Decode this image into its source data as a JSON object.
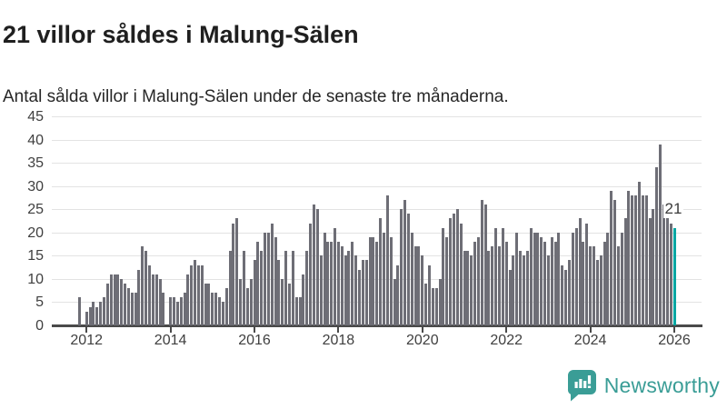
{
  "header": {
    "title": "21 villor såldes i Malung-Sälen",
    "subtitle": "Antal sålda villor i Malung-Sälen under de senaste tre månaderna."
  },
  "chart_data": {
    "type": "bar",
    "title": "21 villor såldes i Malung-Sälen",
    "subtitle": "Antal sålda villor i Malung-Sälen under de senaste tre månaderna.",
    "ylabel": "",
    "xlabel": "",
    "ylim": [
      0,
      45
    ],
    "y_ticks": [
      0,
      5,
      10,
      15,
      20,
      25,
      30,
      35,
      40,
      45
    ],
    "x_tick_years": [
      2012,
      2014,
      2016,
      2018,
      2020,
      2022,
      2024,
      2026
    ],
    "grid": true,
    "legend": "none",
    "bar_color": "#6e6e76",
    "highlight_color": "#00a6a2",
    "x_start": "2011-11",
    "x_end": "2026-01",
    "x_step": "month",
    "values": [
      6,
      0,
      3,
      4,
      5,
      4,
      5,
      6,
      9,
      11,
      11,
      11,
      10,
      9,
      8,
      7,
      7,
      12,
      17,
      16,
      13,
      11,
      11,
      10,
      7,
      0,
      6,
      6,
      5,
      6,
      7,
      11,
      13,
      14,
      13,
      13,
      9,
      9,
      7,
      7,
      6,
      5,
      8,
      16,
      22,
      23,
      10,
      16,
      8,
      10,
      14,
      18,
      16,
      20,
      20,
      22,
      19,
      14,
      10,
      16,
      9,
      16,
      6,
      6,
      11,
      16,
      22,
      26,
      25,
      15,
      20,
      18,
      18,
      21,
      18,
      17,
      15,
      16,
      18,
      15,
      12,
      14,
      14,
      19,
      19,
      18,
      23,
      20,
      28,
      19,
      10,
      13,
      25,
      27,
      24,
      20,
      17,
      17,
      15,
      9,
      13,
      8,
      8,
      10,
      21,
      19,
      23,
      24,
      25,
      22,
      16,
      16,
      15,
      18,
      19,
      27,
      26,
      16,
      17,
      21,
      17,
      21,
      18,
      12,
      15,
      20,
      16,
      15,
      16,
      21,
      20,
      20,
      19,
      18,
      15,
      19,
      18,
      20,
      13,
      12,
      14,
      20,
      21,
      23,
      18,
      22,
      17,
      17,
      14,
      15,
      18,
      20,
      29,
      27,
      17,
      20,
      23,
      29,
      28,
      28,
      31,
      28,
      28,
      23,
      25,
      34,
      39,
      26,
      25,
      22,
      21
    ],
    "highlight": {
      "index": 170,
      "value": 21,
      "annotation": "21"
    }
  },
  "branding": {
    "name": "Newsworthy",
    "color": "#3a9d96",
    "icon": "newsworthy-speech-bubble-chart-icon"
  },
  "colors": {
    "background": "#ffffff",
    "title": "#1f1f1f",
    "subtitle": "#272727",
    "tick_label": "#3f3f3f",
    "gridline": "#e3e3e3",
    "axis": "#4a4a4a",
    "bar": "#6e6e76",
    "highlight_bar": "#00a6a2",
    "annotation": "#3b3b3b"
  }
}
